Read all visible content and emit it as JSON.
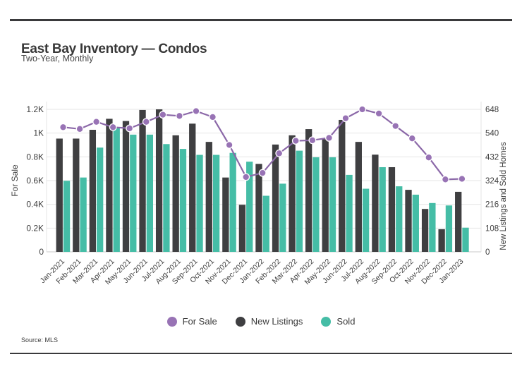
{
  "page": {
    "title": "East Bay Inventory — Condos",
    "subtitle": "Two-Year, Monthly",
    "source": "Source: MLS"
  },
  "chart_data": {
    "type": "bar+line combo",
    "title": "East Bay Inventory — Condos",
    "subtitle": "Two-Year, Monthly",
    "grid": true,
    "legend_position": "bottom",
    "categories": [
      "Jan-2021",
      "Feb-2021",
      "Mar-2021",
      "Apr-2021",
      "May-2021",
      "Jun-2021",
      "Jul-2021",
      "Aug-2021",
      "Sep-2021",
      "Oct-2021",
      "Nov-2021",
      "Dec-2021",
      "Jan-2022",
      "Feb-2022",
      "Mar-2022",
      "Apr-2022",
      "May-2022",
      "Jun-2022",
      "Jul-2022",
      "Aug-2022",
      "Sep-2022",
      "Oct-2022",
      "Nov-2022",
      "Dec-2022",
      "Jan-2023"
    ],
    "series": [
      {
        "name": "For Sale",
        "type": "line",
        "axis": "left",
        "color": "#9873b5",
        "line_color": "#8b68a8",
        "values": [
          1050,
          1035,
          1095,
          1050,
          1040,
          1095,
          1155,
          1145,
          1185,
          1135,
          900,
          630,
          665,
          830,
          935,
          940,
          960,
          1125,
          1200,
          1165,
          1060,
          955,
          795,
          610,
          615
        ]
      },
      {
        "name": "New Listings",
        "type": "bar",
        "axis": "right",
        "color": "#3f3f41",
        "values": [
          515,
          515,
          555,
          605,
          595,
          645,
          648,
          530,
          583,
          500,
          338,
          214,
          400,
          488,
          530,
          558,
          512,
          600,
          500,
          442,
          385,
          282,
          195,
          103,
          273
        ]
      },
      {
        "name": "Sold",
        "type": "bar",
        "axis": "right",
        "color": "#45bda6",
        "values": [
          323,
          338,
          474,
          564,
          533,
          533,
          490,
          468,
          441,
          441,
          450,
          410,
          255,
          310,
          460,
          430,
          430,
          350,
          287,
          385,
          298,
          260,
          222,
          211,
          110
        ]
      }
    ],
    "left_axis": {
      "title": "For Sale",
      "min": 0,
      "max": 1200,
      "tick_values": [
        0,
        200,
        400,
        600,
        800,
        1000,
        1200
      ],
      "tick_labels": [
        "0",
        "0.2K",
        "0.4K",
        "0.6K",
        "0.8K",
        "1K",
        "1.2K"
      ]
    },
    "right_axis": {
      "title": "New Listings and Sold Homes",
      "min": 0,
      "max": 648,
      "tick_values": [
        0,
        108,
        216,
        324,
        432,
        540,
        648
      ],
      "tick_labels": [
        "0",
        "108",
        "216",
        "324",
        "432",
        "540",
        "648"
      ]
    },
    "colors": {
      "grid": "#e4e4e4",
      "axis_line": "#c9c9c9",
      "text": "#3d3d3d"
    }
  }
}
